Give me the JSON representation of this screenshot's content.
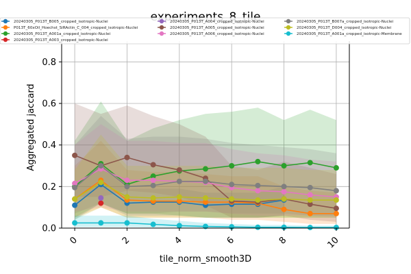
{
  "chart_data": {
    "type": "line",
    "title": "experiments_8_tile",
    "xlabel": "tile_norm_smooth3D",
    "ylabel": "Aggregated jaccard",
    "xlim": [
      -0.5,
      10.5
    ],
    "ylim": [
      0,
      0.9
    ],
    "xticks": [
      0,
      2,
      4,
      6,
      8,
      10
    ],
    "yticks": [
      0.0,
      0.2,
      0.4,
      0.6,
      0.8
    ],
    "xtick_labels": [
      "0",
      "2",
      "4",
      "6",
      "8",
      "10"
    ],
    "ytick_labels": [
      "0.0",
      "0.2",
      "0.4",
      "0.6",
      "0.8"
    ],
    "grid": true,
    "legend_position": "top",
    "x": [
      0,
      1,
      2,
      3,
      4,
      5,
      6,
      7,
      8,
      9,
      10
    ],
    "series": [
      {
        "name": "20240305_P013T_B005_cropped_isotropic-Nuclei",
        "color": "#1f77b4",
        "values": [
          0.11,
          0.21,
          0.12,
          0.125,
          0.125,
          0.11,
          0.115,
          0.115,
          0.135,
          null,
          null
        ],
        "lower": [
          0.04,
          0.12,
          0.06,
          0.06,
          0.06,
          0.05,
          0.05,
          0.05,
          0.06,
          null,
          null
        ],
        "upper": [
          0.2,
          0.3,
          0.19,
          0.19,
          0.19,
          0.17,
          0.17,
          0.17,
          0.2,
          null,
          null
        ]
      },
      {
        "name": "P013T_60xOil_Hoechst_SiRActin_C_004_cropped_isotropic-Nuclei",
        "color": "#ff7f0e",
        "values": [
          0.14,
          0.23,
          0.135,
          0.13,
          0.13,
          0.125,
          0.125,
          0.12,
          0.09,
          0.07,
          0.07
        ],
        "lower": [
          0.05,
          0.1,
          0.05,
          0.05,
          0.05,
          0.05,
          0.04,
          0.04,
          0.03,
          0.02,
          0.02
        ],
        "upper": [
          0.3,
          0.42,
          0.28,
          0.27,
          0.27,
          0.26,
          0.25,
          0.25,
          0.2,
          0.18,
          0.17
        ]
      },
      {
        "name": "20240305_P013T_A001a_cropped_isotropic-Nuclei",
        "color": "#2ca02c",
        "values": [
          0.2,
          0.31,
          0.21,
          0.25,
          0.275,
          0.285,
          0.3,
          0.32,
          0.3,
          0.315,
          0.29
        ],
        "lower": [
          0.05,
          0.12,
          0.07,
          0.07,
          0.06,
          0.05,
          0.05,
          0.05,
          0.05,
          0.05,
          0.05
        ],
        "upper": [
          0.42,
          0.61,
          0.42,
          0.48,
          0.52,
          0.55,
          0.56,
          0.58,
          0.52,
          0.57,
          0.52
        ]
      },
      {
        "name": "20240305_P013T_A003_cropped_isotropic-Nuclei",
        "color": "#d62728",
        "values": [
          null,
          0.12,
          null,
          null,
          null,
          null,
          null,
          null,
          null,
          null,
          null
        ],
        "lower": null,
        "upper": null
      },
      {
        "name": "20240305_P013T_A004_cropped_isotropic-Nuclei",
        "color": "#9467bd",
        "values": [
          null,
          0.145,
          null,
          null,
          null,
          null,
          null,
          null,
          null,
          null,
          null
        ],
        "lower": null,
        "upper": null
      },
      {
        "name": "20240305_P013T_A005_cropped_isotropic-Nuclei",
        "color": "#8c564b",
        "values": [
          0.35,
          0.3,
          0.34,
          0.305,
          0.28,
          0.24,
          0.13,
          0.125,
          0.14,
          0.115,
          0.095
        ],
        "lower": [
          0.15,
          0.15,
          0.18,
          0.17,
          0.15,
          0.11,
          0.05,
          0.05,
          0.06,
          0.04,
          0.03
        ],
        "upper": [
          0.6,
          0.55,
          0.59,
          0.54,
          0.5,
          0.44,
          0.3,
          0.28,
          0.32,
          0.29,
          0.26
        ]
      },
      {
        "name": "20240305_P013T_A006_cropped_isotropic-Nuclei",
        "color": "#e377c2",
        "values": [
          0.215,
          0.285,
          0.23,
          0.23,
          0.225,
          0.22,
          0.195,
          0.18,
          0.175,
          0.16,
          0.15
        ],
        "lower": [
          0.08,
          0.1,
          0.08,
          0.08,
          0.08,
          0.08,
          0.07,
          0.06,
          0.06,
          0.06,
          0.05
        ],
        "upper": [
          0.4,
          0.5,
          0.42,
          0.42,
          0.41,
          0.41,
          0.38,
          0.36,
          0.35,
          0.33,
          0.32
        ]
      },
      {
        "name": "20240305_P013T_B007a_cropped_isotropic-Nuclei",
        "color": "#7f7f7f",
        "values": [
          0.195,
          0.3,
          0.2,
          0.205,
          0.225,
          0.225,
          0.21,
          0.205,
          0.2,
          0.195,
          0.18
        ],
        "lower": [
          0.07,
          0.12,
          0.07,
          0.07,
          0.08,
          0.08,
          0.07,
          0.07,
          0.07,
          0.06,
          0.06
        ],
        "upper": [
          0.4,
          0.54,
          0.43,
          0.44,
          0.44,
          0.43,
          0.41,
          0.4,
          0.39,
          0.38,
          0.36
        ]
      },
      {
        "name": "20240305_P013T_D004_cropped_isotropic-Nuclei",
        "color": "#bcbd22",
        "values": [
          0.14,
          0.22,
          0.15,
          0.145,
          0.15,
          0.145,
          0.14,
          0.135,
          0.14,
          0.135,
          0.135
        ],
        "lower": [
          0.04,
          0.1,
          0.05,
          0.05,
          0.05,
          0.05,
          0.05,
          0.05,
          0.05,
          0.05,
          0.05
        ],
        "upper": [
          0.28,
          0.45,
          0.3,
          0.3,
          0.3,
          0.3,
          0.29,
          0.29,
          0.29,
          0.28,
          0.28
        ]
      },
      {
        "name": "20240305_P013T_A001a_cropped_isotropic-Membrane",
        "color": "#17becf",
        "values": [
          0.025,
          0.025,
          0.025,
          0.018,
          0.012,
          0.008,
          0.006,
          0.004,
          0.004,
          0.003,
          0.003
        ],
        "lower": [
          0.005,
          0.005,
          0.005,
          0.003,
          0.002,
          0.001,
          0.001,
          0.001,
          0.001,
          0.0,
          0.0
        ],
        "upper": [
          0.06,
          0.06,
          0.06,
          0.045,
          0.035,
          0.025,
          0.02,
          0.015,
          0.015,
          0.012,
          0.012
        ]
      }
    ]
  }
}
